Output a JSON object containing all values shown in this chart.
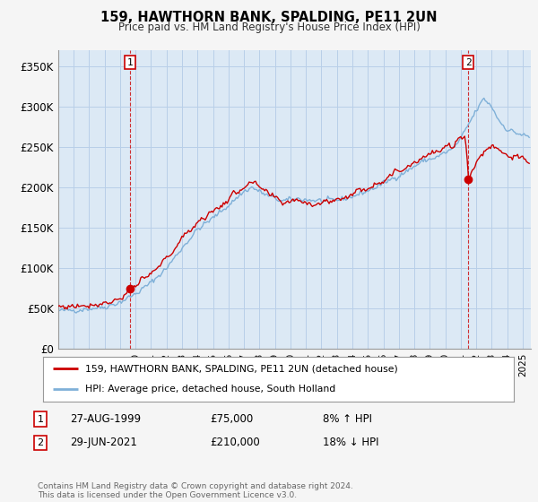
{
  "title": "159, HAWTHORN BANK, SPALDING, PE11 2UN",
  "subtitle": "Price paid vs. HM Land Registry's House Price Index (HPI)",
  "legend_line1": "159, HAWTHORN BANK, SPALDING, PE11 2UN (detached house)",
  "legend_line2": "HPI: Average price, detached house, South Holland",
  "sale1_label": "1",
  "sale1_date": "27-AUG-1999",
  "sale1_price": "£75,000",
  "sale1_hpi": "8% ↑ HPI",
  "sale1_year": 1999.65,
  "sale1_value": 75000,
  "sale2_label": "2",
  "sale2_date": "29-JUN-2021",
  "sale2_price": "£210,000",
  "sale2_hpi": "18% ↓ HPI",
  "sale2_year": 2021.49,
  "sale2_value": 210000,
  "ylim": [
    0,
    370000
  ],
  "yticks": [
    0,
    50000,
    100000,
    150000,
    200000,
    250000,
    300000,
    350000
  ],
  "ytick_labels": [
    "£0",
    "£50K",
    "£100K",
    "£150K",
    "£200K",
    "£250K",
    "£300K",
    "£350K"
  ],
  "xlim_start": 1995.0,
  "xlim_end": 2025.5,
  "red_color": "#cc0000",
  "blue_color": "#7fb0d8",
  "bg_color": "#f5f5f5",
  "plot_bg": "#dce9f5",
  "grid_color": "#b8cfe8",
  "annotation_color": "#cc0000",
  "footnote": "Contains HM Land Registry data © Crown copyright and database right 2024.\nThis data is licensed under the Open Government Licence v3.0."
}
